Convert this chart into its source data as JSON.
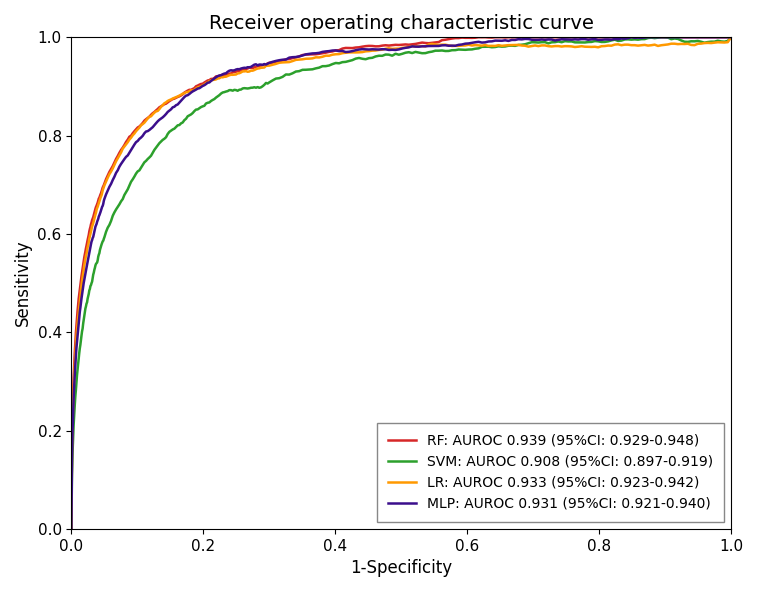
{
  "title": "Receiver operating characteristic curve",
  "xlabel": "1-Specificity",
  "ylabel": "Sensitivity",
  "xlim": [
    0.0,
    1.0
  ],
  "ylim": [
    0.0,
    1.0
  ],
  "curves": [
    {
      "label": "RF: AUROC 0.939 (95%CI: 0.929-0.948)",
      "color": "#d62728",
      "auroc": 0.939,
      "seed": 42,
      "noise_scale": 0.006
    },
    {
      "label": "SVM: AUROC 0.908 (95%CI: 0.897-0.919)",
      "color": "#2ca02c",
      "auroc": 0.908,
      "seed": 7,
      "noise_scale": 0.01
    },
    {
      "label": "LR: AUROC 0.933 (95%CI: 0.923-0.942)",
      "color": "#ff9900",
      "auroc": 0.933,
      "seed": 13,
      "noise_scale": 0.007
    },
    {
      "label": "MLP: AUROC 0.931 (95%CI: 0.921-0.940)",
      "color": "#3b0e8c",
      "auroc": 0.931,
      "seed": 99,
      "noise_scale": 0.007
    }
  ],
  "legend_loc": "lower right",
  "title_fontsize": 14,
  "label_fontsize": 12,
  "tick_fontsize": 11,
  "legend_fontsize": 10,
  "linewidth": 1.8,
  "figwidth": 7.57,
  "figheight": 5.91,
  "dpi": 100
}
